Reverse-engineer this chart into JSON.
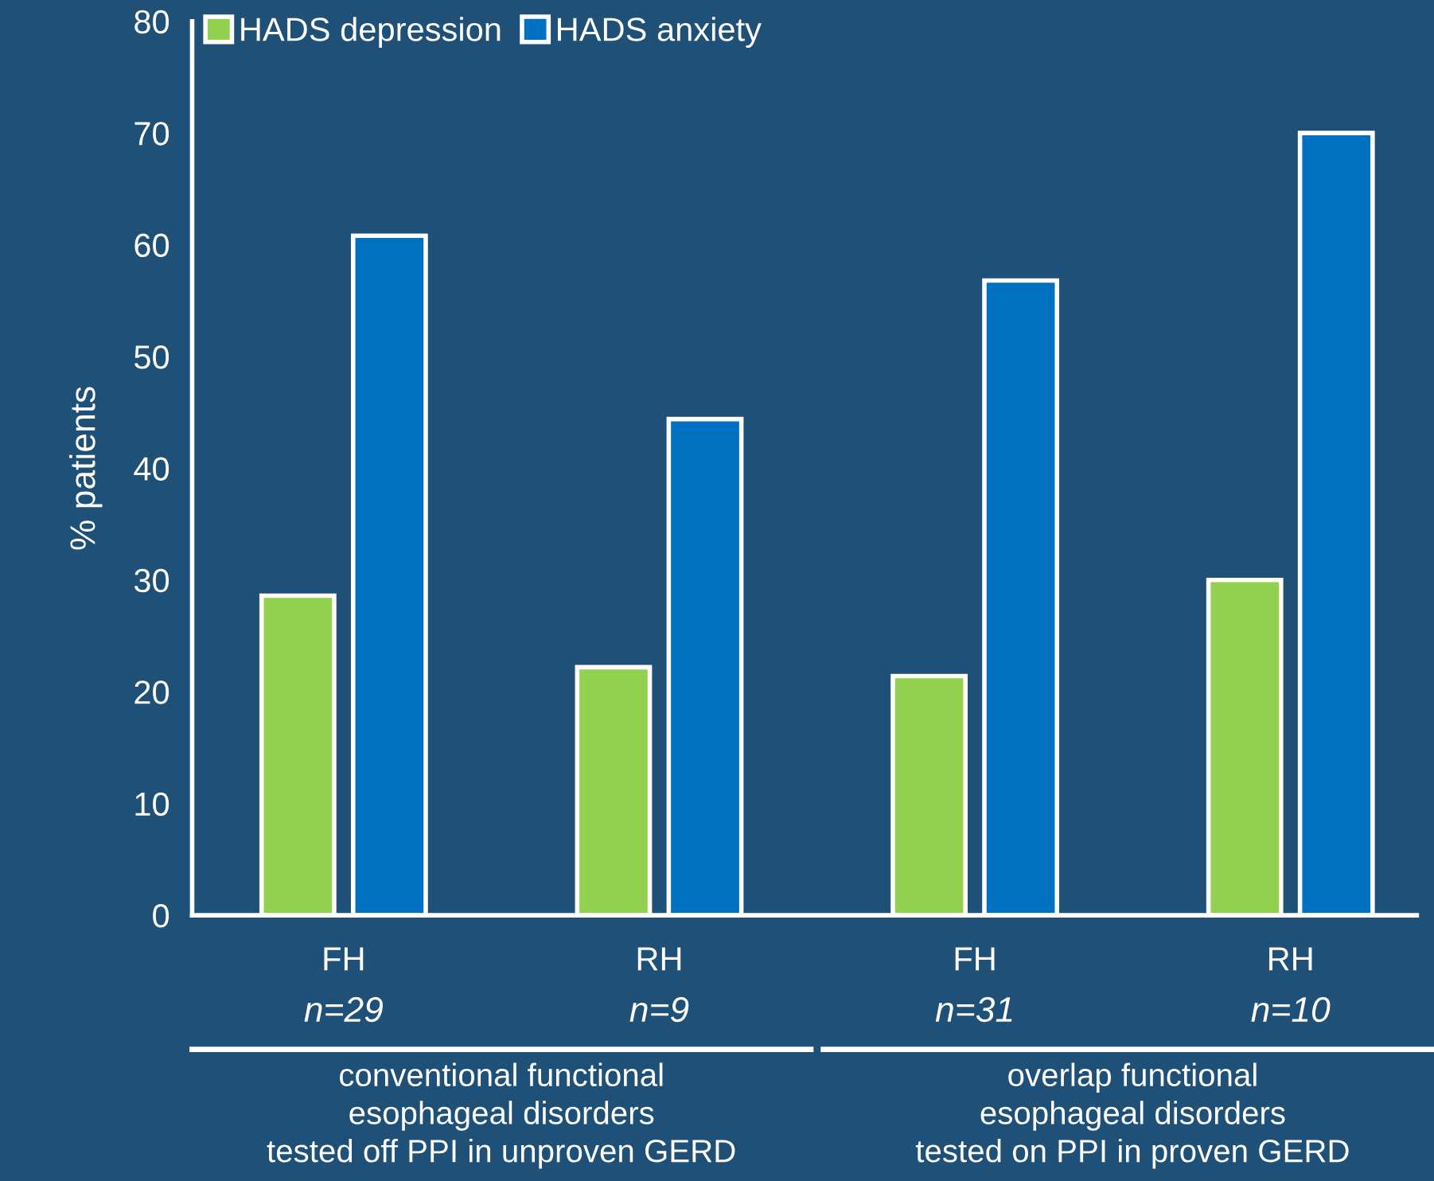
{
  "chart_data": {
    "type": "bar",
    "ylabel": "% patients",
    "categories": [
      "FH",
      "RH",
      "FH",
      "RH"
    ],
    "series": [
      {
        "name": "HADS depression",
        "color": "#92d050",
        "values": [
          28.6,
          22.2,
          21.4,
          30.0
        ]
      },
      {
        "name": "HADS anxiety",
        "color": "#0070c0",
        "values": [
          60.8,
          44.4,
          56.8,
          70.0
        ]
      }
    ],
    "ylim": [
      0,
      80
    ],
    "yticks": [
      0,
      10,
      20,
      30,
      40,
      50,
      60,
      70,
      80
    ],
    "grid": false,
    "legend": "top left",
    "annotations": [
      "n=29",
      "n=9",
      "n=31",
      "n=10",
      "conventional functional\nesophageal disorders\ntested off PPI in unproven GERD",
      "overlap functional\nesophageal disorders\ntested on PPI in proven GERD"
    ]
  }
}
